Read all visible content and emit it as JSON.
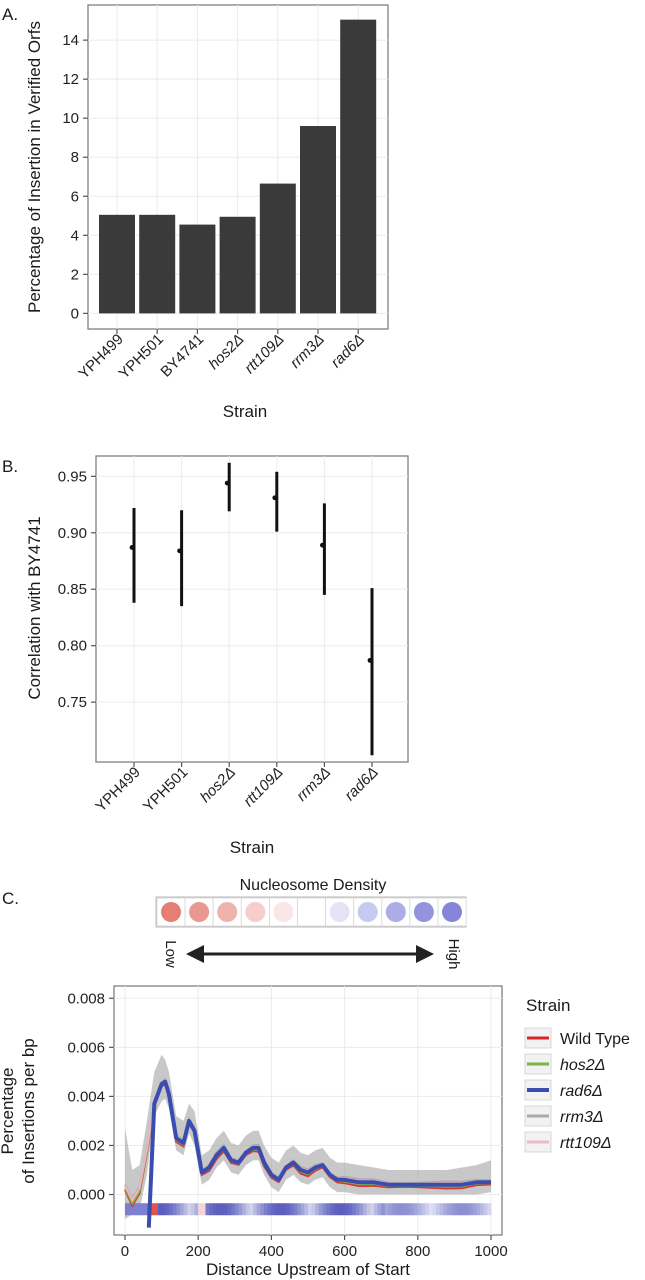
{
  "panels": [
    {
      "label": "A."
    },
    {
      "label": "B."
    },
    {
      "label": "C."
    }
  ],
  "chart_data": [
    {
      "type": "bar",
      "xlabel": "Strain",
      "ylabel": "Percentage of Insertion in Verified Orfs",
      "categories": [
        "YPH499",
        "YPH501",
        "BY4741",
        "hos2Δ",
        "rtt109Δ",
        "rrm3Δ",
        "rad6Δ"
      ],
      "italic_categories": [
        false,
        false,
        false,
        true,
        true,
        true,
        true
      ],
      "values": [
        5.05,
        5.05,
        4.55,
        4.95,
        6.65,
        9.6,
        15.05
      ],
      "ylim": [
        -0.8,
        15.8
      ],
      "yticks": [
        0,
        2,
        4,
        6,
        8,
        10,
        12,
        14
      ],
      "bar_color": "#3a3a3a",
      "grid": true
    },
    {
      "type": "scatter",
      "subtype": "point-range",
      "xlabel": "Strain",
      "ylabel": "Correlation with BY4741",
      "categories": [
        "YPH499",
        "YPH501",
        "hos2Δ",
        "rtt109Δ",
        "rrm3Δ",
        "rad6Δ"
      ],
      "italic_categories": [
        false,
        false,
        true,
        true,
        true,
        true
      ],
      "values": [
        0.887,
        0.884,
        0.944,
        0.931,
        0.889,
        0.787
      ],
      "lower": [
        0.838,
        0.835,
        0.919,
        0.901,
        0.845,
        0.703
      ],
      "upper": [
        0.922,
        0.92,
        0.962,
        0.954,
        0.926,
        0.851
      ],
      "ylim": [
        0.697,
        0.968
      ],
      "yticks": [
        0.75,
        0.8,
        0.85,
        0.9,
        0.95
      ],
      "ytick_labels": [
        "0.75",
        "0.80",
        "0.85",
        "0.90",
        "0.95"
      ],
      "grid": true
    },
    {
      "type": "line",
      "xlabel": "Distance Upstream of Start",
      "ylabel": "Percentage\nof Insertions per bp",
      "xlim": [
        -30,
        1030
      ],
      "ylim": [
        -0.00165,
        0.0085
      ],
      "xticks": [
        0,
        200,
        400,
        600,
        800,
        1000
      ],
      "yticks": [
        0,
        0.002,
        0.004,
        0.006,
        0.008
      ],
      "ytick_labels": [
        "0.000",
        "0.002",
        "0.004",
        "0.006",
        "0.008"
      ],
      "legend": {
        "title": "Strain",
        "placement": "right"
      },
      "series": [
        {
          "name": "Wild Type",
          "color": "#d62728",
          "italic": false
        },
        {
          "name": "hos2Δ",
          "color": "#7cb342",
          "italic": true
        },
        {
          "name": "rad6Δ",
          "color": "#3b4cb0",
          "italic": true
        },
        {
          "name": "rrm3Δ",
          "color": "#a9a9a9",
          "italic": true
        },
        {
          "name": "rtt109Δ",
          "color": "#f2b8c6",
          "italic": true
        }
      ],
      "x": [
        0,
        20,
        40,
        60,
        80,
        100,
        110,
        120,
        140,
        160,
        175,
        190,
        210,
        230,
        250,
        270,
        290,
        310,
        330,
        350,
        365,
        380,
        400,
        420,
        440,
        460,
        480,
        500,
        520,
        540,
        560,
        580,
        600,
        640,
        680,
        720,
        760,
        800,
        840,
        880,
        920,
        960,
        1000
      ],
      "rad6_values": [
        0.0003,
        -0.0003,
        0.0002,
        0.0018,
        0.0037,
        0.0045,
        0.0046,
        0.0041,
        0.0023,
        0.0021,
        0.003,
        0.0026,
        0.0009,
        0.0011,
        0.0016,
        0.0019,
        0.0014,
        0.0013,
        0.0017,
        0.0019,
        0.0019,
        0.0013,
        0.0008,
        0.0006,
        0.0011,
        0.0013,
        0.001,
        0.0009,
        0.0011,
        0.0012,
        0.0008,
        0.0006,
        0.0006,
        0.0005,
        0.0005,
        0.0004,
        0.0004,
        0.0004,
        0.0004,
        0.0004,
        0.0004,
        0.0005,
        0.0005
      ],
      "band_lower": [
        -0.001,
        -0.0008,
        -0.0006,
        0.0008,
        0.0032,
        0.0038,
        0.0039,
        0.0035,
        0.0018,
        0.0016,
        0.0025,
        0.002,
        0.0004,
        0.0006,
        0.0011,
        0.0014,
        0.0009,
        0.0008,
        0.0012,
        0.0014,
        0.0014,
        0.0008,
        0.0003,
        0.0001,
        0.0006,
        0.0008,
        0.0005,
        0.0004,
        0.0006,
        0.0007,
        0.0003,
        0.0001,
        0.0001,
        0.0,
        0.0,
        0.0,
        0.0,
        0.0,
        0.0,
        0.0,
        0.0,
        0.0,
        0.0001
      ],
      "band_upper": [
        0.0027,
        0.001,
        0.0012,
        0.003,
        0.005,
        0.0057,
        0.0055,
        0.005,
        0.0032,
        0.003,
        0.0037,
        0.0034,
        0.0016,
        0.0018,
        0.0023,
        0.0026,
        0.0021,
        0.002,
        0.0024,
        0.0026,
        0.0026,
        0.002,
        0.0015,
        0.0013,
        0.0018,
        0.002,
        0.0017,
        0.0016,
        0.0018,
        0.0019,
        0.0015,
        0.0013,
        0.0013,
        0.0012,
        0.0011,
        0.001,
        0.001,
        0.001,
        0.001,
        0.001,
        0.0011,
        0.0012,
        0.0014
      ],
      "rad6_start_x": 65,
      "strip_y": -0.0006,
      "nucleosome_legend": {
        "title": "Nucleosome Density",
        "low_label": "Low",
        "high_label": "High",
        "colors": [
          "#e57f73",
          "#ea988f",
          "#f0b2ac",
          "#f6cdca",
          "#fae6e4",
          "#ffffff",
          "#e4e4f6",
          "#c8c9ee",
          "#acade6",
          "#9394dd",
          "#8586d7"
        ]
      }
    }
  ]
}
